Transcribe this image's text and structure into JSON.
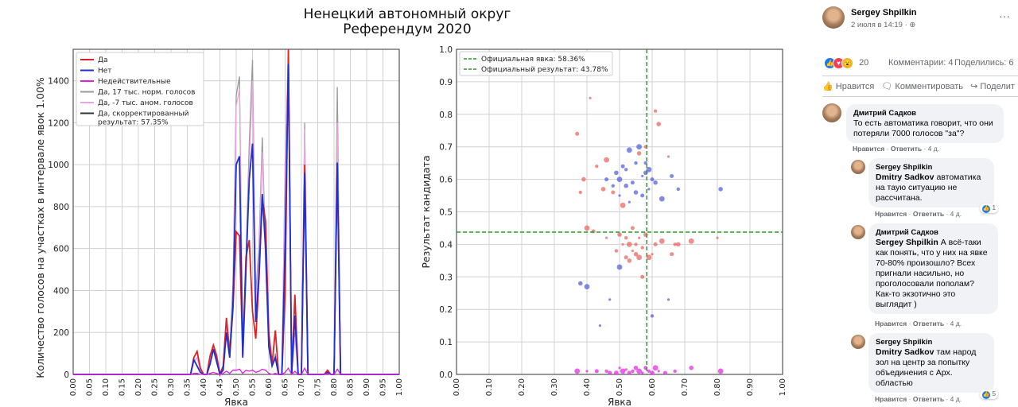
{
  "header": {
    "title_line1": "Ненецкий автономный округ",
    "title_line2": "Референдум 2020"
  },
  "chart_data": [
    {
      "type": "line",
      "ylabel": "Количество голосов на участках в интервале явок 1.00%",
      "xlabel": "Явка",
      "xlim": [
        0,
        1
      ],
      "ylim": [
        0,
        1550
      ],
      "xticks": [
        "0.00",
        "0.05",
        "0.10",
        "0.15",
        "0.20",
        "0.25",
        "0.30",
        "0.35",
        "0.40",
        "0.45",
        "0.50",
        "0.55",
        "0.60",
        "0.65",
        "0.70",
        "0.75",
        "0.80",
        "0.85",
        "0.90",
        "0.95",
        "1.00"
      ],
      "yticks": [
        0,
        200,
        400,
        600,
        800,
        1000,
        1200,
        1400
      ],
      "grid": true,
      "legend_position": "top-left",
      "legend": [
        "Да",
        "Нет",
        "Недействительные",
        "Да, 17 тыс. норм. голосов",
        "Да, -7 тыс. аном. голосов",
        "Да, скорректированный результат: 57.35%"
      ],
      "x": [
        0.0,
        0.36,
        0.37,
        0.38,
        0.39,
        0.4,
        0.41,
        0.42,
        0.43,
        0.44,
        0.45,
        0.46,
        0.47,
        0.48,
        0.49,
        0.5,
        0.51,
        0.52,
        0.53,
        0.54,
        0.55,
        0.56,
        0.57,
        0.58,
        0.59,
        0.6,
        0.61,
        0.62,
        0.63,
        0.64,
        0.65,
        0.66,
        0.67,
        0.68,
        0.69,
        0.7,
        0.71,
        0.72,
        0.73,
        0.74,
        0.75,
        0.76,
        0.77,
        0.78,
        0.79,
        0.8,
        0.81,
        0.82,
        1.0
      ],
      "series": [
        {
          "name": "Да, 17 тыс. норм. голосов",
          "color": "#999999",
          "values": [
            0,
            0,
            60,
            80,
            20,
            0,
            0,
            70,
            120,
            80,
            0,
            30,
            250,
            120,
            430,
            1330,
            1420,
            120,
            560,
            1100,
            1500,
            380,
            620,
            1130,
            580,
            170,
            40,
            100,
            0,
            0,
            1000,
            1560,
            0,
            200,
            0,
            0,
            1200,
            0,
            0,
            0,
            0,
            0,
            0,
            20,
            0,
            0,
            1370,
            0,
            0
          ]
        },
        {
          "name": "Да, -7 тыс. аном. голосов",
          "color": "#e8a6e0",
          "values": [
            0,
            0,
            60,
            80,
            20,
            0,
            0,
            70,
            120,
            80,
            0,
            30,
            230,
            110,
            360,
            1280,
            1360,
            110,
            510,
            1000,
            1400,
            330,
            560,
            1060,
            520,
            150,
            40,
            90,
            0,
            0,
            960,
            1560,
            0,
            180,
            0,
            0,
            1170,
            0,
            0,
            0,
            0,
            0,
            0,
            20,
            0,
            0,
            1200,
            0,
            0
          ]
        },
        {
          "name": "Да",
          "color": "#e02020",
          "values": [
            0,
            0,
            80,
            110,
            30,
            0,
            0,
            90,
            140,
            90,
            0,
            40,
            270,
            100,
            310,
            680,
            660,
            90,
            560,
            640,
            300,
            170,
            460,
            840,
            730,
            200,
            50,
            210,
            0,
            0,
            380,
            1560,
            0,
            380,
            0,
            0,
            1000,
            0,
            0,
            0,
            0,
            0,
            0,
            20,
            0,
            0,
            1010,
            0,
            0
          ]
        },
        {
          "name": "Нет",
          "color": "#1f2fd0",
          "values": [
            0,
            0,
            70,
            40,
            10,
            0,
            0,
            50,
            120,
            60,
            0,
            20,
            200,
            80,
            330,
            1000,
            1040,
            80,
            500,
            930,
            1100,
            250,
            480,
            860,
            600,
            130,
            40,
            80,
            0,
            0,
            620,
            1480,
            0,
            280,
            0,
            0,
            960,
            0,
            0,
            0,
            0,
            0,
            0,
            10,
            0,
            0,
            1010,
            0,
            0
          ]
        },
        {
          "name": "Недействительные",
          "color": "#e020e0",
          "values": [
            0,
            0,
            5,
            5,
            0,
            0,
            0,
            5,
            10,
            5,
            0,
            5,
            15,
            5,
            20,
            20,
            25,
            5,
            20,
            15,
            20,
            10,
            15,
            25,
            20,
            5,
            0,
            5,
            0,
            0,
            10,
            30,
            0,
            15,
            0,
            0,
            30,
            0,
            0,
            0,
            0,
            0,
            0,
            5,
            0,
            0,
            25,
            0,
            0
          ]
        }
      ]
    },
    {
      "type": "scatter",
      "xlabel": "Явка",
      "ylabel": "Результат кандидата",
      "xlim": [
        0,
        1
      ],
      "ylim": [
        0,
        1
      ],
      "xticks": [
        "0.00",
        "0.10",
        "0.20",
        "0.30",
        "0.40",
        "0.50",
        "0.60",
        "0.70",
        "0.80",
        "0.90",
        "1.00"
      ],
      "yticks": [
        "0.0",
        "0.1",
        "0.2",
        "0.3",
        "0.4",
        "0.5",
        "0.6",
        "0.7",
        "0.8",
        "0.9",
        "1.0"
      ],
      "grid": true,
      "legend_position": "top-left",
      "legend": [
        "Официальная явка: 58.36%",
        "Официальный результат: 43.78%"
      ],
      "official_turnout": 0.5836,
      "official_result": 0.4378,
      "series": [
        {
          "name": "Да",
          "color": "#e8605a",
          "points": [
            [
              0.38,
              0.56
            ],
            [
              0.39,
              0.6
            ],
            [
              0.4,
              0.45
            ],
            [
              0.41,
              0.85
            ],
            [
              0.42,
              0.44
            ],
            [
              0.43,
              0.64
            ],
            [
              0.45,
              0.57
            ],
            [
              0.46,
              0.66
            ],
            [
              0.46,
              0.42
            ],
            [
              0.48,
              0.56
            ],
            [
              0.49,
              0.38
            ],
            [
              0.5,
              0.43
            ],
            [
              0.51,
              0.52
            ],
            [
              0.51,
              0.4
            ],
            [
              0.52,
              0.36
            ],
            [
              0.52,
              0.42
            ],
            [
              0.53,
              0.35
            ],
            [
              0.53,
              0.4
            ],
            [
              0.54,
              0.38
            ],
            [
              0.54,
              0.45
            ],
            [
              0.55,
              0.4
            ],
            [
              0.55,
              0.37
            ],
            [
              0.56,
              0.36
            ],
            [
              0.56,
              0.42
            ],
            [
              0.57,
              0.3
            ],
            [
              0.57,
              0.39
            ],
            [
              0.58,
              0.43
            ],
            [
              0.59,
              0.36
            ],
            [
              0.6,
              0.37
            ],
            [
              0.61,
              0.4
            ],
            [
              0.61,
              0.81
            ],
            [
              0.62,
              0.77
            ],
            [
              0.63,
              0.41
            ],
            [
              0.65,
              0.67
            ],
            [
              0.66,
              0.37
            ],
            [
              0.67,
              0.4
            ],
            [
              0.68,
              0.4
            ],
            [
              0.72,
              0.41
            ],
            [
              0.8,
              0.42
            ],
            [
              0.37,
              0.74
            ],
            [
              0.58,
              0.7
            ],
            [
              0.56,
              0.68
            ]
          ]
        },
        {
          "name": "Нет",
          "color": "#4a5ad8",
          "points": [
            [
              0.38,
              0.28
            ],
            [
              0.4,
              0.27
            ],
            [
              0.44,
              0.15
            ],
            [
              0.46,
              0.6
            ],
            [
              0.48,
              0.58
            ],
            [
              0.49,
              0.62
            ],
            [
              0.5,
              0.6
            ],
            [
              0.5,
              0.55
            ],
            [
              0.51,
              0.64
            ],
            [
              0.52,
              0.63
            ],
            [
              0.52,
              0.58
            ],
            [
              0.53,
              0.69
            ],
            [
              0.53,
              0.53
            ],
            [
              0.54,
              0.59
            ],
            [
              0.55,
              0.65
            ],
            [
              0.55,
              0.56
            ],
            [
              0.56,
              0.7
            ],
            [
              0.57,
              0.61
            ],
            [
              0.57,
              0.55
            ],
            [
              0.58,
              0.65
            ],
            [
              0.58,
              0.62
            ],
            [
              0.59,
              0.63
            ],
            [
              0.59,
              0.57
            ],
            [
              0.6,
              0.6
            ],
            [
              0.6,
              0.18
            ],
            [
              0.61,
              0.59
            ],
            [
              0.63,
              0.54
            ],
            [
              0.65,
              0.23
            ],
            [
              0.66,
              0.61
            ],
            [
              0.68,
              0.57
            ],
            [
              0.81,
              0.57
            ],
            [
              0.5,
              0.33
            ],
            [
              0.47,
              0.23
            ]
          ]
        },
        {
          "name": "Недействительные",
          "color": "#e020e0",
          "points": [
            [
              0.37,
              0.01
            ],
            [
              0.4,
              0.01
            ],
            [
              0.43,
              0.01
            ],
            [
              0.46,
              0.01
            ],
            [
              0.49,
              0.005
            ],
            [
              0.51,
              0.01
            ],
            [
              0.52,
              0.015
            ],
            [
              0.53,
              0.005
            ],
            [
              0.54,
              0.01
            ],
            [
              0.55,
              0.02
            ],
            [
              0.56,
              0.01
            ],
            [
              0.57,
              0.005
            ],
            [
              0.58,
              0.02
            ],
            [
              0.59,
              0.01
            ],
            [
              0.6,
              0.005
            ],
            [
              0.61,
              0.02
            ],
            [
              0.62,
              0.01
            ],
            [
              0.64,
              0.005
            ],
            [
              0.67,
              0.01
            ],
            [
              0.72,
              0.02
            ],
            [
              0.81,
              0.01
            ],
            [
              0.5,
              0.02
            ],
            [
              0.47,
              0.005
            ]
          ]
        }
      ]
    }
  ],
  "post": {
    "author": "Sergey Shpilkin",
    "date": "2 июля в 14:19 · ",
    "more": "···",
    "reactions_count": "20",
    "comments_count": "Комментарии: 4",
    "shares_count": "Поделились: 6",
    "action_like": "Нравится",
    "action_comment": "Комментировать",
    "action_share": "Поделит"
  },
  "comments": [
    {
      "author": "Дмитрий Садков",
      "mention": "",
      "text": "То есть автоматика говорит, что они потеряли 7000 голосов \"за\"?",
      "like": "Нравится",
      "reply": "Ответить",
      "time": "4 д.",
      "likes": ""
    },
    {
      "author": "Sergey Shpilkin",
      "mention": "Dmitry Sadkov",
      "text": " автоматика на таую ситуацию не рассчитана.",
      "like": "Нравится",
      "reply": "Ответить",
      "time": "4 д.",
      "likes": "1"
    },
    {
      "author": "Дмитрий Садков",
      "mention": "Sergey Shpilkin",
      "text": " А всё-таки как понять, что у них на явке 70-80% произошло? Всех пригнали насильно, но проголосовали пополам? Как-то экзотично это выглядит )",
      "like": "Нравится",
      "reply": "Ответить",
      "time": "4 д.",
      "likes": ""
    },
    {
      "author": "Sergey Shpilkin",
      "mention": "Dmitry Sadkov",
      "text": " там народ зол на центр за попытку объединения с Арх. областью",
      "like": "Нравится",
      "reply": "Ответить",
      "time": "4 д.",
      "likes": "5"
    }
  ]
}
